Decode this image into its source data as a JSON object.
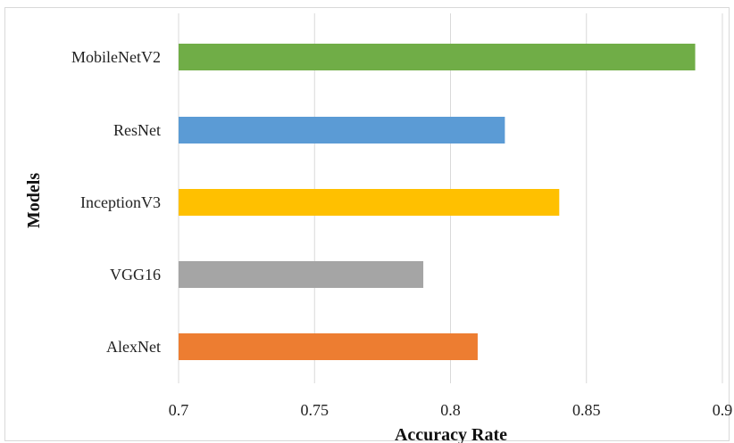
{
  "chart_data": {
    "type": "bar",
    "orientation": "horizontal",
    "title": "",
    "xlabel": "Accuracy Rate",
    "ylabel": "Models",
    "xlim": [
      0.7,
      0.9
    ],
    "x_ticks": [
      "0.7",
      "0.75",
      "0.8",
      "0.85",
      "0.9"
    ],
    "x_tick_values": [
      0.7,
      0.75,
      0.8,
      0.85,
      0.9
    ],
    "grid": "vertical",
    "legend": "none",
    "categories": [
      "MobileNetV2",
      "ResNet",
      "InceptionV3",
      "VGG16",
      "AlexNet"
    ],
    "values": [
      0.89,
      0.82,
      0.84,
      0.79,
      0.81
    ],
    "colors": [
      "#70ad47",
      "#5b9bd5",
      "#ffc000",
      "#a5a5a5",
      "#ed7d31"
    ]
  }
}
